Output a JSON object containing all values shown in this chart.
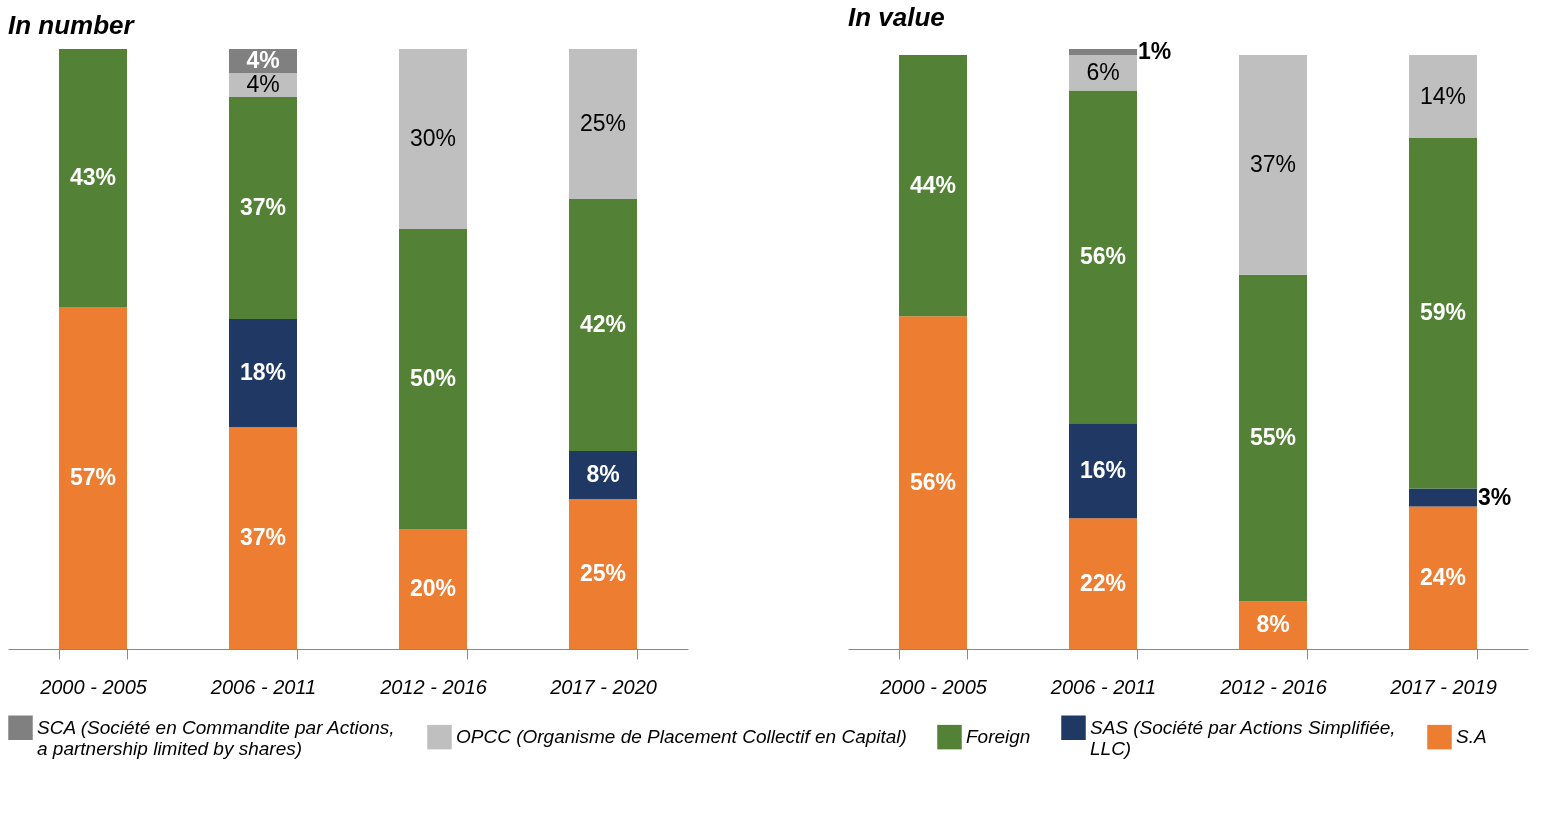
{
  "chart_data": [
    {
      "type": "bar",
      "title": "In number",
      "stacked": true,
      "legend": "bottom",
      "ylim": [
        0,
        100
      ],
      "categories": [
        "2000 - 2005",
        "2006 - 2011",
        "2012 - 2016",
        "2017 - 2020"
      ],
      "series": [
        {
          "name": "S.A",
          "color": "#ed7d31",
          "values": [
            57,
            37,
            20,
            25
          ],
          "value_labels": [
            "57%",
            "37%",
            "20%",
            "25%"
          ]
        },
        {
          "name": "SAS (Société par Actions Simplifiée, LLC)",
          "color": "#203864",
          "values": [
            null,
            18,
            null,
            8
          ],
          "value_labels": [
            null,
            "18%",
            null,
            "8%"
          ]
        },
        {
          "name": "Foreign",
          "color": "#538135",
          "values": [
            43,
            37,
            50,
            42
          ],
          "value_labels": [
            "43%",
            "37%",
            "50%",
            "42%"
          ]
        },
        {
          "name": "OPCC (Organisme de Placement Collectif en Capital)",
          "color": "#bfbfbf",
          "values": [
            null,
            4,
            30,
            25
          ],
          "value_labels": [
            null,
            "4%",
            "30%",
            "25%"
          ]
        },
        {
          "name": "SCA (Société en Commandite par Actions, a partnership limited by shares)",
          "color": "#808080",
          "values": [
            null,
            4,
            null,
            null
          ],
          "value_labels": [
            null,
            "4%",
            null,
            null
          ]
        }
      ]
    },
    {
      "type": "bar",
      "title": "In value",
      "stacked": true,
      "legend": "bottom",
      "ylim": [
        0,
        101
      ],
      "categories": [
        "2000 - 2005",
        "2006 - 2011",
        "2012 - 2016",
        "2017 - 2019"
      ],
      "series": [
        {
          "name": "S.A",
          "color": "#ed7d31",
          "values": [
            56,
            22,
            8,
            24
          ],
          "value_labels": [
            "56%",
            "22%",
            "8%",
            "24%"
          ]
        },
        {
          "name": "SAS (Société par Actions Simplifiée, LLC)",
          "color": "#203864",
          "values": [
            null,
            16,
            null,
            3
          ],
          "value_labels": [
            null,
            "16%",
            null,
            "3%"
          ]
        },
        {
          "name": "Foreign",
          "color": "#538135",
          "values": [
            44,
            56,
            55,
            59
          ],
          "value_labels": [
            "44%",
            "56%",
            "55%",
            "59%"
          ]
        },
        {
          "name": "OPCC (Organisme de Placement Collectif en Capital)",
          "color": "#bfbfbf",
          "values": [
            null,
            6,
            37,
            14
          ],
          "value_labels": [
            null,
            "6%",
            "37%",
            "14%"
          ]
        },
        {
          "name": "SCA (Société en Commandite par Actions, a partnership limited by shares)",
          "color": "#808080",
          "values": [
            null,
            1,
            null,
            null
          ],
          "value_labels": [
            null,
            "1%",
            null,
            null
          ]
        }
      ]
    }
  ]
}
